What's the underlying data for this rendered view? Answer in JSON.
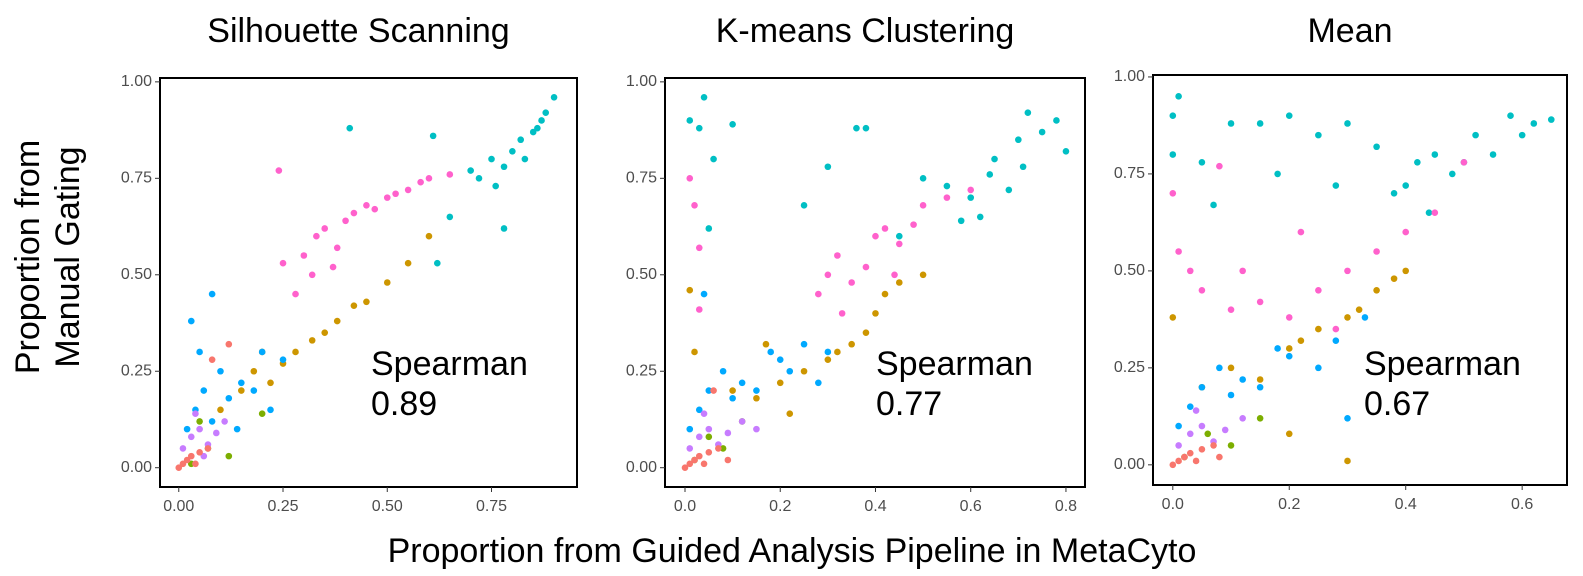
{
  "xlabel": "Proportion from Guided Analysis Pipeline in MetaCyto",
  "ylabel": [
    "Proportion from",
    "Manual Gating"
  ],
  "chart_data": [
    {
      "type": "scatter",
      "title": "Silhouette Scanning",
      "annotation": [
        "Spearman",
        "0.89"
      ],
      "xlim": [
        -0.045,
        0.955
      ],
      "ylim": [
        -0.05,
        1.01
      ],
      "xticks": [
        {
          "value": 0,
          "label": "0.00"
        },
        {
          "value": 0.25,
          "label": "0.25"
        },
        {
          "value": 0.5,
          "label": "0.50"
        },
        {
          "value": 0.75,
          "label": "0.75"
        }
      ],
      "yticks": [
        {
          "value": 0,
          "label": "0.00"
        },
        {
          "value": 0.25,
          "label": "0.25"
        },
        {
          "value": 0.5,
          "label": "0.50"
        },
        {
          "value": 0.75,
          "label": "0.75"
        },
        {
          "value": 1,
          "label": "1.00"
        }
      ],
      "series": [
        {
          "color": "#00BFC4",
          "x": [
            0.72,
            0.75,
            0.78,
            0.8,
            0.82,
            0.85,
            0.87,
            0.88,
            0.9,
            0.76,
            0.7,
            0.65,
            0.62,
            0.41,
            0.78,
            0.83,
            0.86,
            0.61
          ],
          "y": [
            0.75,
            0.8,
            0.78,
            0.82,
            0.85,
            0.87,
            0.9,
            0.92,
            0.96,
            0.73,
            0.77,
            0.65,
            0.53,
            0.88,
            0.62,
            0.8,
            0.88,
            0.86
          ]
        },
        {
          "color": "#FF61CC",
          "x": [
            0.25,
            0.3,
            0.33,
            0.35,
            0.38,
            0.4,
            0.42,
            0.45,
            0.5,
            0.55,
            0.6,
            0.65,
            0.32,
            0.28,
            0.37,
            0.47,
            0.52,
            0.58,
            0.24
          ],
          "y": [
            0.53,
            0.55,
            0.6,
            0.62,
            0.57,
            0.64,
            0.66,
            0.68,
            0.7,
            0.72,
            0.75,
            0.76,
            0.5,
            0.45,
            0.52,
            0.67,
            0.71,
            0.74,
            0.77
          ]
        },
        {
          "color": "#CD9600",
          "x": [
            0.2,
            0.25,
            0.28,
            0.32,
            0.35,
            0.38,
            0.42,
            0.45,
            0.5,
            0.55,
            0.6,
            0.15,
            0.18,
            0.1,
            0.22
          ],
          "y": [
            0.3,
            0.27,
            0.3,
            0.33,
            0.35,
            0.38,
            0.42,
            0.43,
            0.48,
            0.53,
            0.6,
            0.2,
            0.25,
            0.15,
            0.22
          ]
        },
        {
          "color": "#7CAE00",
          "x": [
            0.03,
            0.07,
            0.12,
            0.2,
            0.05
          ],
          "y": [
            0.01,
            0.05,
            0.03,
            0.14,
            0.12
          ]
        },
        {
          "color": "#00A9FF",
          "x": [
            0.02,
            0.04,
            0.06,
            0.08,
            0.1,
            0.12,
            0.15,
            0.18,
            0.2,
            0.25,
            0.22,
            0.08,
            0.05,
            0.03,
            0.14
          ],
          "y": [
            0.1,
            0.15,
            0.2,
            0.12,
            0.25,
            0.18,
            0.22,
            0.2,
            0.3,
            0.28,
            0.15,
            0.45,
            0.3,
            0.38,
            0.1
          ]
        },
        {
          "color": "#C77CFF",
          "x": [
            0.01,
            0.03,
            0.05,
            0.07,
            0.09,
            0.11,
            0.04,
            0.06
          ],
          "y": [
            0.05,
            0.08,
            0.1,
            0.06,
            0.09,
            0.12,
            0.14,
            0.03
          ]
        },
        {
          "color": "#F8766D",
          "x": [
            0,
            0.01,
            0.02,
            0.03,
            0.05,
            0.07,
            0.04,
            0.08,
            0.12
          ],
          "y": [
            0,
            0.01,
            0.02,
            0.03,
            0.04,
            0.05,
            0.01,
            0.28,
            0.32
          ]
        }
      ]
    },
    {
      "type": "scatter",
      "title": "K-means Clustering",
      "annotation": [
        "Spearman",
        "0.77"
      ],
      "xlim": [
        -0.042,
        0.84
      ],
      "ylim": [
        -0.05,
        1.01
      ],
      "xticks": [
        {
          "value": 0,
          "label": "0.0"
        },
        {
          "value": 0.2,
          "label": "0.2"
        },
        {
          "value": 0.4,
          "label": "0.4"
        },
        {
          "value": 0.6,
          "label": "0.6"
        },
        {
          "value": 0.8,
          "label": "0.8"
        }
      ],
      "yticks": [
        {
          "value": 0,
          "label": "0.00"
        },
        {
          "value": 0.25,
          "label": "0.25"
        },
        {
          "value": 0.5,
          "label": "0.50"
        },
        {
          "value": 0.75,
          "label": "0.75"
        },
        {
          "value": 1,
          "label": "1.00"
        }
      ],
      "series": [
        {
          "color": "#00BFC4",
          "x": [
            0.01,
            0.03,
            0.04,
            0.06,
            0.1,
            0.05,
            0.36,
            0.38,
            0.3,
            0.5,
            0.55,
            0.6,
            0.65,
            0.7,
            0.72,
            0.75,
            0.78,
            0.8,
            0.68,
            0.62,
            0.45,
            0.58,
            0.64,
            0.71,
            0.25
          ],
          "y": [
            0.9,
            0.88,
            0.96,
            0.8,
            0.89,
            0.62,
            0.88,
            0.88,
            0.78,
            0.75,
            0.73,
            0.7,
            0.8,
            0.85,
            0.92,
            0.87,
            0.9,
            0.82,
            0.72,
            0.65,
            0.6,
            0.64,
            0.76,
            0.78,
            0.68
          ]
        },
        {
          "color": "#FF61CC",
          "x": [
            0.01,
            0.02,
            0.03,
            0.3,
            0.32,
            0.35,
            0.38,
            0.4,
            0.42,
            0.45,
            0.48,
            0.5,
            0.55,
            0.6,
            0.28,
            0.03,
            0.33,
            0.44
          ],
          "y": [
            0.75,
            0.68,
            0.57,
            0.5,
            0.55,
            0.48,
            0.52,
            0.6,
            0.62,
            0.58,
            0.63,
            0.68,
            0.7,
            0.72,
            0.45,
            0.41,
            0.4,
            0.5
          ]
        },
        {
          "color": "#CD9600",
          "x": [
            0.01,
            0.02,
            0.1,
            0.15,
            0.2,
            0.25,
            0.3,
            0.32,
            0.35,
            0.38,
            0.4,
            0.42,
            0.45,
            0.5,
            0.22,
            0.17
          ],
          "y": [
            0.46,
            0.3,
            0.2,
            0.18,
            0.22,
            0.25,
            0.28,
            0.3,
            0.32,
            0.35,
            0.4,
            0.45,
            0.48,
            0.5,
            0.14,
            0.32
          ]
        },
        {
          "color": "#7CAE00",
          "x": [
            0.02,
            0.05,
            0.08,
            0.12
          ],
          "y": [
            0.02,
            0.08,
            0.05,
            0.12
          ]
        },
        {
          "color": "#00A9FF",
          "x": [
            0.01,
            0.03,
            0.05,
            0.08,
            0.1,
            0.12,
            0.15,
            0.18,
            0.2,
            0.22,
            0.25,
            0.28,
            0.04,
            0.3
          ],
          "y": [
            0.1,
            0.15,
            0.2,
            0.25,
            0.18,
            0.22,
            0.2,
            0.3,
            0.28,
            0.25,
            0.32,
            0.22,
            0.45,
            0.3
          ]
        },
        {
          "color": "#C77CFF",
          "x": [
            0.01,
            0.03,
            0.05,
            0.07,
            0.09,
            0.12,
            0.15,
            0.04
          ],
          "y": [
            0.05,
            0.08,
            0.1,
            0.06,
            0.09,
            0.12,
            0.1,
            0.14
          ]
        },
        {
          "color": "#F8766D",
          "x": [
            0,
            0.01,
            0.02,
            0.03,
            0.05,
            0.07,
            0.04,
            0.09,
            0.06
          ],
          "y": [
            0,
            0.01,
            0.02,
            0.03,
            0.04,
            0.05,
            0.01,
            0.02,
            0.2
          ]
        }
      ]
    },
    {
      "type": "scatter",
      "title": "Mean",
      "annotation": [
        "Spearman",
        "0.67"
      ],
      "xlim": [
        -0.034,
        0.677
      ],
      "ylim": [
        -0.052,
        1.005
      ],
      "xticks": [
        {
          "value": 0,
          "label": "0.0"
        },
        {
          "value": 0.2,
          "label": "0.2"
        },
        {
          "value": 0.4,
          "label": "0.4"
        },
        {
          "value": 0.6,
          "label": "0.6"
        }
      ],
      "yticks": [
        {
          "value": 0,
          "label": "0.00"
        },
        {
          "value": 0.25,
          "label": "0.25"
        },
        {
          "value": 0.5,
          "label": "0.50"
        },
        {
          "value": 0.75,
          "label": "0.75"
        },
        {
          "value": 1,
          "label": "1.00"
        }
      ],
      "series": [
        {
          "color": "#00BFC4",
          "x": [
            0,
            0.01,
            0,
            0.05,
            0.1,
            0.15,
            0.2,
            0.25,
            0.3,
            0.35,
            0.38,
            0.4,
            0.42,
            0.45,
            0.48,
            0.5,
            0.52,
            0.55,
            0.58,
            0.6,
            0.62,
            0.65,
            0.07,
            0.18,
            0.28,
            0.44
          ],
          "y": [
            0.9,
            0.95,
            0.8,
            0.78,
            0.88,
            0.88,
            0.9,
            0.85,
            0.88,
            0.82,
            0.7,
            0.72,
            0.78,
            0.8,
            0.75,
            0.78,
            0.85,
            0.8,
            0.9,
            0.85,
            0.88,
            0.89,
            0.67,
            0.75,
            0.72,
            0.65
          ]
        },
        {
          "color": "#FF61CC",
          "x": [
            0,
            0.01,
            0.03,
            0.05,
            0.08,
            0.1,
            0.15,
            0.2,
            0.25,
            0.3,
            0.35,
            0.4,
            0.45,
            0.5,
            0.22,
            0.28,
            0.12
          ],
          "y": [
            0.7,
            0.55,
            0.5,
            0.45,
            0.77,
            0.4,
            0.42,
            0.38,
            0.45,
            0.5,
            0.55,
            0.6,
            0.65,
            0.78,
            0.6,
            0.35,
            0.5
          ]
        },
        {
          "color": "#CD9600",
          "x": [
            0,
            0.05,
            0.1,
            0.15,
            0.2,
            0.22,
            0.25,
            0.3,
            0.32,
            0.35,
            0.38,
            0.4,
            0.2,
            0.3
          ],
          "y": [
            0.38,
            0.2,
            0.25,
            0.22,
            0.3,
            0.32,
            0.35,
            0.38,
            0.4,
            0.45,
            0.48,
            0.5,
            0.08,
            0.01
          ]
        },
        {
          "color": "#7CAE00",
          "x": [
            0.02,
            0.06,
            0.1,
            0.15
          ],
          "y": [
            0.02,
            0.08,
            0.05,
            0.12
          ]
        },
        {
          "color": "#00A9FF",
          "x": [
            0.01,
            0.03,
            0.05,
            0.08,
            0.1,
            0.12,
            0.15,
            0.18,
            0.2,
            0.25,
            0.28,
            0.3,
            0.33
          ],
          "y": [
            0.1,
            0.15,
            0.2,
            0.25,
            0.18,
            0.22,
            0.2,
            0.3,
            0.28,
            0.25,
            0.32,
            0.12,
            0.38
          ]
        },
        {
          "color": "#C77CFF",
          "x": [
            0.01,
            0.03,
            0.05,
            0.07,
            0.09,
            0.12,
            0.04
          ],
          "y": [
            0.05,
            0.08,
            0.1,
            0.06,
            0.09,
            0.12,
            0.14
          ]
        },
        {
          "color": "#F8766D",
          "x": [
            0,
            0.01,
            0.02,
            0.03,
            0.05,
            0.07,
            0.04,
            0.08
          ],
          "y": [
            0,
            0.01,
            0.02,
            0.03,
            0.04,
            0.05,
            0.01,
            0.02
          ]
        }
      ]
    }
  ]
}
